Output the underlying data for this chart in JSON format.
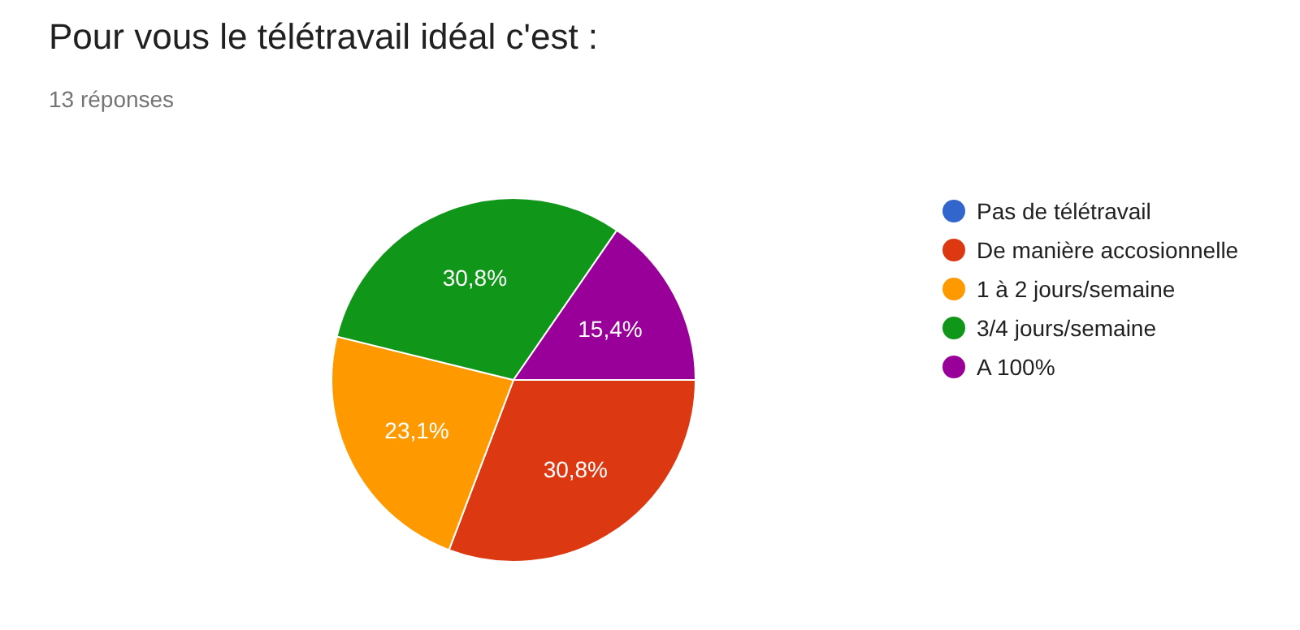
{
  "chart_data": {
    "type": "pie",
    "title": "Pour vous le télétravail idéal c'est :",
    "subtitle": "13 réponses",
    "categories": [
      "Pas de télétravail",
      "De manière accosionnelle",
      "1 à 2 jours/semaine",
      "3/4 jours/semaine",
      "A 100%"
    ],
    "values": [
      0,
      30.8,
      23.1,
      30.8,
      15.4
    ],
    "colors": [
      "#3366cc",
      "#dc3912",
      "#ff9900",
      "#109618",
      "#990099"
    ],
    "value_labels": [
      null,
      "30,8%",
      "23,1%",
      "30,8%",
      "15,4%"
    ],
    "legend": "right"
  }
}
